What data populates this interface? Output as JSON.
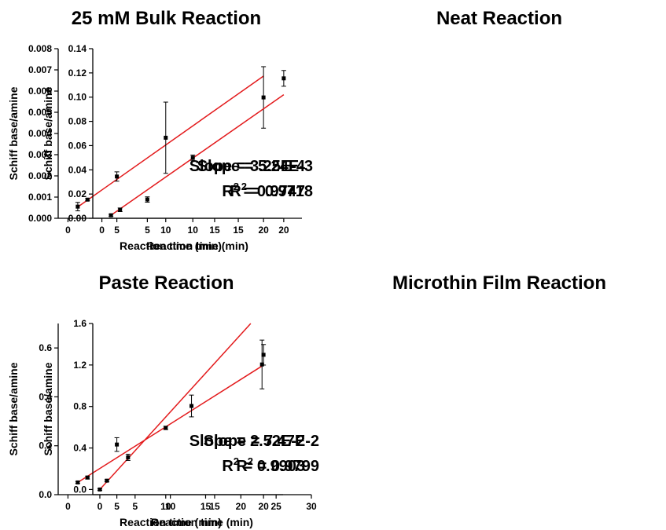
{
  "chart_data": [
    {
      "type": "scatter",
      "title": "25 mM Bulk Reaction",
      "xlabel": "Reaction time (min)",
      "ylabel": "Schiff base/amine",
      "xlim": [
        -1,
        22
      ],
      "ylim": [
        0,
        0.008
      ],
      "xticks": [
        0,
        5,
        10,
        15,
        20
      ],
      "yticks": [
        0,
        0.001,
        0.002,
        0.003,
        0.004,
        0.005,
        0.006,
        0.007,
        0.008
      ],
      "ytick_labels": [
        "0.000",
        "0.001",
        "0.002",
        "0.003",
        "0.004",
        "0.005",
        "0.006",
        "0.007",
        "0.008"
      ],
      "points": [
        {
          "x": 1,
          "y": 0.00055,
          "err": 0.0002
        },
        {
          "x": 2,
          "y": 0.00088,
          "err": 5e-05
        },
        {
          "x": 5,
          "y": 0.00197,
          "err": 0.00022
        },
        {
          "x": 10,
          "y": 0.0038,
          "err": 0.00168
        },
        {
          "x": 20,
          "y": 0.0057,
          "err": 0.00145
        }
      ],
      "fit": {
        "x": [
          1,
          20
        ],
        "y": [
          0.000533,
          0.00671
        ]
      },
      "annotation": {
        "slope": "Slope = 3.25E-4",
        "r2_prefix": "R",
        "r2_sup": "2",
        "r2_value": " = 0.9747"
      }
    },
    {
      "type": "scatter",
      "title": "Neat Reaction",
      "xlabel": "Reaction time (min)",
      "ylabel": "Schiff base/amine",
      "xlim": [
        -1,
        22
      ],
      "ylim": [
        0,
        0.14
      ],
      "xticks": [
        0,
        5,
        10,
        15,
        20
      ],
      "yticks": [
        0,
        0.02,
        0.04,
        0.06,
        0.08,
        0.1,
        0.12,
        0.14
      ],
      "ytick_labels": [
        "0.00",
        "0.02",
        "0.04",
        "0.06",
        "0.08",
        "0.10",
        "0.12",
        "0.14"
      ],
      "points": [
        {
          "x": 1,
          "y": 0.0025,
          "err": 0.0008
        },
        {
          "x": 2,
          "y": 0.007,
          "err": 0.0015
        },
        {
          "x": 5,
          "y": 0.0155,
          "err": 0.0022
        },
        {
          "x": 10,
          "y": 0.05,
          "err": 0.0022
        },
        {
          "x": 20,
          "y": 0.1155,
          "err": 0.0065
        }
      ],
      "fit": {
        "x": [
          1,
          20
        ],
        "y": [
          0.0025,
          0.102
        ]
      },
      "annotation": {
        "slope": "Slope = 5.24E-3",
        "r2_prefix": "R",
        "r2_sup": "2",
        "r2_value": " = 0.9718"
      }
    },
    {
      "type": "scatter",
      "title": "Paste Reaction",
      "xlabel": "Reaction time (min)",
      "ylabel": "Schiff base/amine",
      "xlim": [
        -1,
        22
      ],
      "ylim": [
        0,
        0.7
      ],
      "xticks": [
        0,
        5,
        10,
        15,
        20
      ],
      "yticks": [
        0,
        0.2,
        0.4,
        0.6
      ],
      "ytick_labels": [
        "0.0",
        "0.2",
        "0.4",
        "0.6"
      ],
      "points": [
        {
          "x": 1,
          "y": 0.05,
          "err": 0.004
        },
        {
          "x": 2,
          "y": 0.07,
          "err": 0.006
        },
        {
          "x": 5,
          "y": 0.205,
          "err": 0.028
        },
        {
          "x": 10,
          "y": 0.273,
          "err": 0.007
        },
        {
          "x": 20,
          "y": 0.572,
          "err": 0.042
        }
      ],
      "fit": {
        "x": [
          1,
          20
        ],
        "y": [
          0.05,
          0.53
        ]
      },
      "annotation": {
        "slope": "Slope = 2.52E-2",
        "r2_prefix": "R",
        "r2_sup": "2",
        "r2_value": " = 0.9903"
      }
    },
    {
      "type": "scatter",
      "title": "Microthin Film Reaction",
      "xlabel": "Reaction time (min)",
      "ylabel": "Schiff base/amine",
      "xlim": [
        -1,
        30
      ],
      "ylim": [
        -0.05,
        1.6
      ],
      "xticks": [
        0,
        5,
        10,
        15,
        20,
        25,
        30
      ],
      "yticks": [
        0,
        0.4,
        0.8,
        1.2,
        1.6
      ],
      "ytick_labels": [
        "0.0",
        "0.4",
        "0.8",
        "1.2",
        "1.6"
      ],
      "points": [
        {
          "x": 0,
          "y": 0.0,
          "err": 0.008
        },
        {
          "x": 1,
          "y": 0.085,
          "err": 0.01
        },
        {
          "x": 4,
          "y": 0.31,
          "err": 0.03
        },
        {
          "x": 13,
          "y": 0.805,
          "err": 0.105
        },
        {
          "x": 23,
          "y": 1.205,
          "err": 0.235
        }
      ],
      "fit": {
        "x": [
          0,
          21.4
        ],
        "y": [
          0.0,
          1.6
        ]
      },
      "annotation": {
        "slope": "Slope = 7.47E-2",
        "r2_prefix": "R",
        "r2_sup": "2",
        "r2_value": " = 0.9799"
      }
    }
  ]
}
